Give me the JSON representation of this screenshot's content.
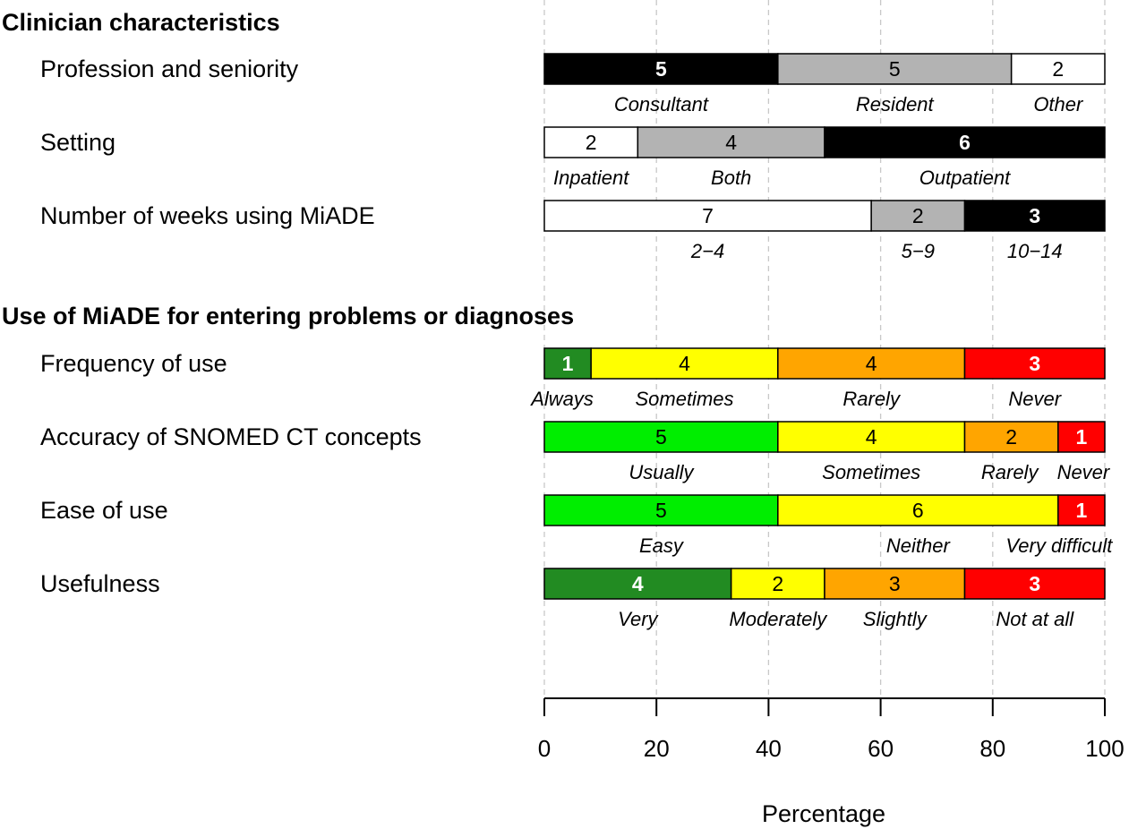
{
  "chart_data": {
    "type": "bar",
    "stacked": true,
    "orientation": "horizontal",
    "xlabel": "Percentage",
    "xlim": [
      0,
      100
    ],
    "xticks": [
      0,
      20,
      40,
      60,
      80,
      100
    ],
    "grid": "vertical dashed",
    "colors": {
      "black": "#000000",
      "gray": "#b3b3b3",
      "white": "#ffffff",
      "darkgreen": "#228b22",
      "green": "#00ee00",
      "yellow": "#ffff00",
      "orange": "#ffa500",
      "red": "#ff0000"
    },
    "sections": [
      {
        "title": "Clinician characteristics",
        "rows": [
          {
            "label": "Profession and seniority",
            "segments": [
              {
                "category": "Consultant",
                "count": 5,
                "color": "#000000",
                "text_color": "#ffffff",
                "bold": true
              },
              {
                "category": "Resident",
                "count": 5,
                "color": "#b3b3b3",
                "text_color": "#000000",
                "bold": false
              },
              {
                "category": "Other",
                "count": 2,
                "color": "#ffffff",
                "text_color": "#000000",
                "bold": false
              }
            ]
          },
          {
            "label": "Setting",
            "segments": [
              {
                "category": "Inpatient",
                "count": 2,
                "color": "#ffffff",
                "text_color": "#000000",
                "bold": false
              },
              {
                "category": "Both",
                "count": 4,
                "color": "#b3b3b3",
                "text_color": "#000000",
                "bold": false
              },
              {
                "category": "Outpatient",
                "count": 6,
                "color": "#000000",
                "text_color": "#ffffff",
                "bold": true
              }
            ]
          },
          {
            "label": "Number of weeks using MiADE",
            "segments": [
              {
                "category": "2−4",
                "count": 7,
                "color": "#ffffff",
                "text_color": "#000000",
                "bold": false
              },
              {
                "category": "5−9",
                "count": 2,
                "color": "#b3b3b3",
                "text_color": "#000000",
                "bold": false
              },
              {
                "category": "10−14",
                "count": 3,
                "color": "#000000",
                "text_color": "#ffffff",
                "bold": true
              }
            ]
          }
        ]
      },
      {
        "title": "Use of MiADE for entering problems or diagnoses",
        "rows": [
          {
            "label": "Frequency of use",
            "segments": [
              {
                "category": "Always",
                "count": 1,
                "color": "#228b22",
                "text_color": "#ffffff",
                "bold": true
              },
              {
                "category": "Sometimes",
                "count": 4,
                "color": "#ffff00",
                "text_color": "#000000",
                "bold": false
              },
              {
                "category": "Rarely",
                "count": 4,
                "color": "#ffa500",
                "text_color": "#000000",
                "bold": false
              },
              {
                "category": "Never",
                "count": 3,
                "color": "#ff0000",
                "text_color": "#ffffff",
                "bold": true
              }
            ]
          },
          {
            "label": "Accuracy of SNOMED CT concepts",
            "segments": [
              {
                "category": "Usually",
                "count": 5,
                "color": "#00ee00",
                "text_color": "#000000",
                "bold": false
              },
              {
                "category": "Sometimes",
                "count": 4,
                "color": "#ffff00",
                "text_color": "#000000",
                "bold": false
              },
              {
                "category": "Rarely",
                "count": 2,
                "color": "#ffa500",
                "text_color": "#000000",
                "bold": false
              },
              {
                "category": "Never",
                "count": 1,
                "color": "#ff0000",
                "text_color": "#ffffff",
                "bold": true
              }
            ]
          },
          {
            "label": "Ease of use",
            "segments": [
              {
                "category": "Easy",
                "count": 5,
                "color": "#00ee00",
                "text_color": "#000000",
                "bold": false
              },
              {
                "category": "Neither",
                "count": 6,
                "color": "#ffff00",
                "text_color": "#000000",
                "bold": false
              },
              {
                "category": "Very difficult",
                "count": 1,
                "color": "#ff0000",
                "text_color": "#ffffff",
                "bold": true
              }
            ]
          },
          {
            "label": "Usefulness",
            "segments": [
              {
                "category": "Very",
                "count": 4,
                "color": "#228b22",
                "text_color": "#ffffff",
                "bold": true
              },
              {
                "category": "Moderately",
                "count": 2,
                "color": "#ffff00",
                "text_color": "#000000",
                "bold": false
              },
              {
                "category": "Slightly",
                "count": 3,
                "color": "#ffa500",
                "text_color": "#000000",
                "bold": false
              },
              {
                "category": "Not at all",
                "count": 3,
                "color": "#ff0000",
                "text_color": "#ffffff",
                "bold": true
              }
            ]
          }
        ]
      }
    ]
  }
}
